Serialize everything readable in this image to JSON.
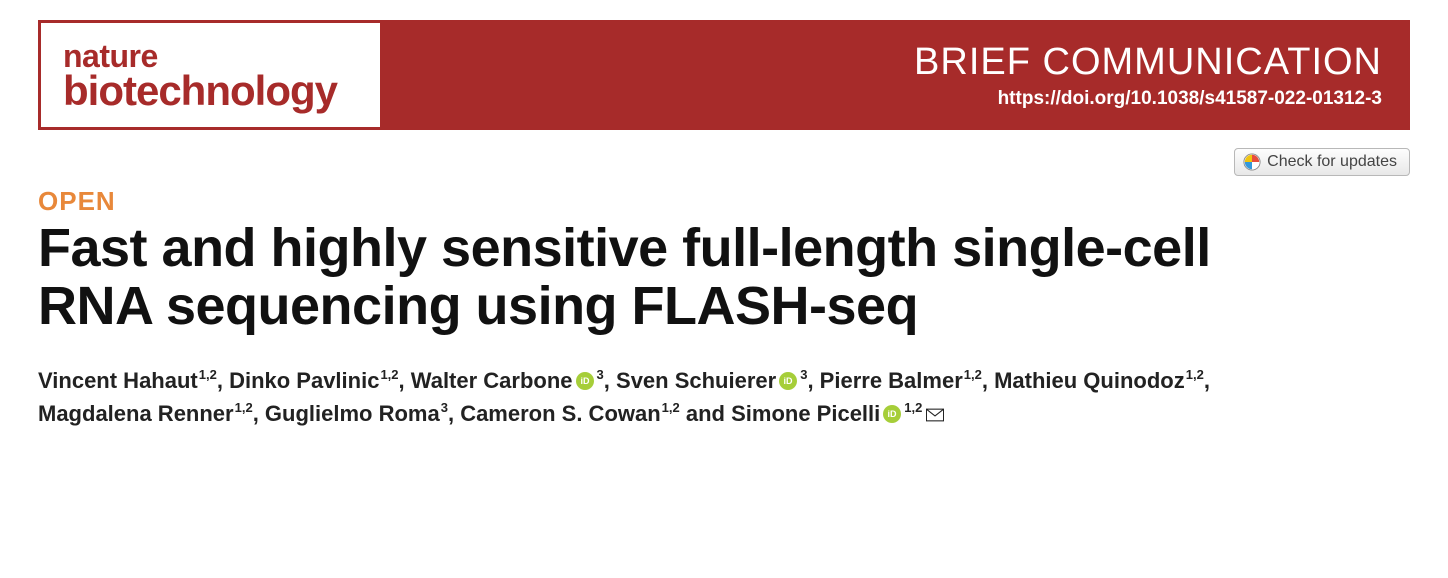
{
  "journal": {
    "line1": "nature",
    "line2": "biotechnology",
    "brand_color": "#a72b2a"
  },
  "banner": {
    "article_type": "BRIEF COMMUNICATION",
    "doi": "https://doi.org/10.1038/s41587-022-01312-3",
    "bg_color": "#a72b2a",
    "text_color": "#ffffff"
  },
  "updates_button": {
    "label": "Check for updates"
  },
  "open_access": {
    "label": "OPEN",
    "color": "#e8883a"
  },
  "title": "Fast and highly sensitive full-length single-cell RNA sequencing using FLASH-seq",
  "authors": [
    {
      "name": "Vincent Hahaut",
      "affil": "1,2",
      "orcid": false,
      "corresponding": false
    },
    {
      "name": "Dinko Pavlinic",
      "affil": "1,2",
      "orcid": false,
      "corresponding": false
    },
    {
      "name": "Walter Carbone",
      "affil": "3",
      "orcid": true,
      "corresponding": false
    },
    {
      "name": "Sven Schuierer",
      "affil": "3",
      "orcid": true,
      "corresponding": false
    },
    {
      "name": "Pierre Balmer",
      "affil": "1,2",
      "orcid": false,
      "corresponding": false
    },
    {
      "name": "Mathieu Quinodoz",
      "affil": "1,2",
      "orcid": false,
      "corresponding": false
    },
    {
      "name": "Magdalena Renner",
      "affil": "1,2",
      "orcid": false,
      "corresponding": false
    },
    {
      "name": "Guglielmo Roma",
      "affil": "3",
      "orcid": false,
      "corresponding": false
    },
    {
      "name": "Cameron S. Cowan",
      "affil": "1,2",
      "orcid": false,
      "corresponding": false
    },
    {
      "name": "Simone Picelli",
      "affil": "1,2",
      "orcid": true,
      "corresponding": true
    }
  ],
  "orcid_color": "#a6ce39"
}
